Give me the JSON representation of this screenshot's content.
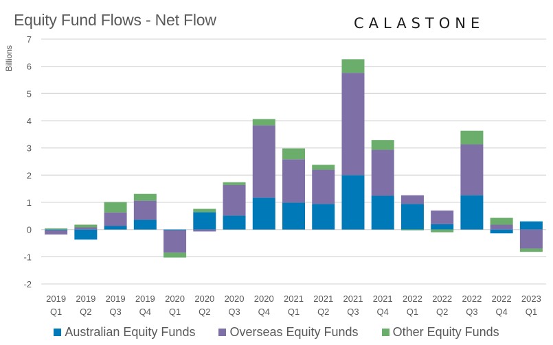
{
  "header": {
    "title": "Equity Fund Flows - Net Flow",
    "brand": "CALASTONE"
  },
  "chart_data": {
    "type": "bar",
    "stacked": true,
    "title": "Equity Fund Flows - Net Flow",
    "xlabel": "",
    "ylabel": "Billions",
    "ylim": [
      -2,
      7
    ],
    "yticks": [
      7,
      6,
      5,
      4,
      3,
      2,
      1,
      0,
      -1,
      -2
    ],
    "grid": true,
    "legend_position": "bottom",
    "categories": [
      [
        "2019",
        "Q1"
      ],
      [
        "2019",
        "Q2"
      ],
      [
        "2019",
        "Q3"
      ],
      [
        "2019",
        "Q4"
      ],
      [
        "2020",
        "Q1"
      ],
      [
        "2020",
        "Q2"
      ],
      [
        "2020",
        "Q3"
      ],
      [
        "2020",
        "Q4"
      ],
      [
        "2021",
        "Q1"
      ],
      [
        "2021",
        "Q2"
      ],
      [
        "2021",
        "Q3"
      ],
      [
        "2021",
        "Q4"
      ],
      [
        "2022",
        "Q1"
      ],
      [
        "2022",
        "Q2"
      ],
      [
        "2022",
        "Q3"
      ],
      [
        "2022",
        "Q4"
      ],
      [
        "2023",
        "Q1"
      ]
    ],
    "series": [
      {
        "name": "Australian Equity Funds",
        "color": "#0079B8",
        "values": [
          -0.03,
          -0.37,
          0.13,
          0.36,
          -0.03,
          0.64,
          0.51,
          1.17,
          0.99,
          0.94,
          2.0,
          1.24,
          0.94,
          0.2,
          1.26,
          -0.14,
          0.3
        ]
      },
      {
        "name": "Overseas Equity Funds",
        "color": "#7E6FA6",
        "values": [
          -0.15,
          0.08,
          0.5,
          0.7,
          -0.82,
          -0.07,
          1.13,
          2.66,
          1.59,
          1.26,
          3.76,
          1.69,
          0.32,
          0.5,
          1.87,
          0.18,
          -0.7
        ]
      },
      {
        "name": "Other Equity Funds",
        "color": "#6BAD6B",
        "values": [
          0.04,
          0.1,
          0.38,
          0.25,
          -0.18,
          0.12,
          0.1,
          0.23,
          0.4,
          0.18,
          0.5,
          0.36,
          -0.03,
          -0.1,
          0.5,
          0.25,
          -0.12
        ]
      }
    ]
  }
}
